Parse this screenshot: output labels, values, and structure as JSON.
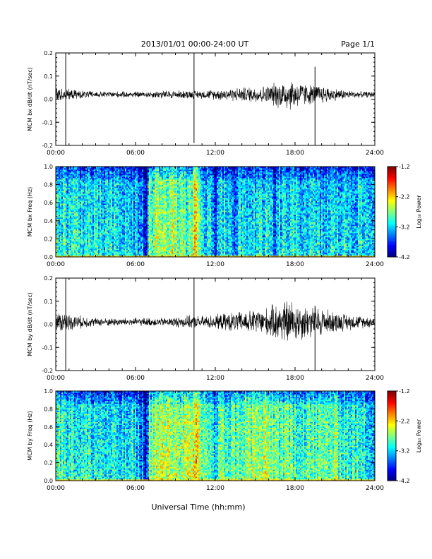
{
  "header": {
    "date_range": "2013/01/01   00:00-24:00 UT",
    "page": "Page 1/1"
  },
  "footer": {
    "xlabel": "Universal Time (hh:mm)"
  },
  "chart_data": [
    {
      "id": "bx-dbdt",
      "type": "line",
      "ylabel": "MCM bx dB/dt (nT/sec)",
      "xlim": [
        0,
        24
      ],
      "ylim": [
        -0.2,
        0.2
      ],
      "x_ticks": [
        "00:00",
        "06:00",
        "12:00",
        "18:00",
        "24:00"
      ],
      "x_tick_values": [
        0,
        6,
        12,
        18,
        24
      ],
      "y_ticks": [
        "-0.2",
        "-0.1",
        "0.0",
        "0.1",
        "0.2"
      ],
      "y_tick_values": [
        -0.2,
        -0.1,
        0.0,
        0.1,
        0.2
      ],
      "color": "#000000",
      "envelope": {
        "hours": [
          0,
          0.5,
          1,
          2,
          3,
          4,
          5,
          6,
          7,
          8,
          9,
          10,
          11,
          12,
          13,
          14,
          15,
          16,
          16.5,
          17,
          17.5,
          18,
          18.5,
          19,
          20,
          21,
          22,
          23,
          24
        ],
        "baseline": [
          0.02,
          0.02,
          0.02,
          0.02,
          0.02,
          0.02,
          0.02,
          0.02,
          0.02,
          0.02,
          0.02,
          0.02,
          0.02,
          0.02,
          0.02,
          0.02,
          0.02,
          0.02,
          0.02,
          0.02,
          0.02,
          0.02,
          0.02,
          0.02,
          0.02,
          0.02,
          0.02,
          0.02,
          0.02
        ],
        "amplitude": [
          0.04,
          0.03,
          0.025,
          0.02,
          0.015,
          0.015,
          0.015,
          0.015,
          0.015,
          0.02,
          0.02,
          0.02,
          0.02,
          0.025,
          0.03,
          0.035,
          0.04,
          0.045,
          0.06,
          0.07,
          0.08,
          0.07,
          0.06,
          0.05,
          0.045,
          0.03,
          0.02,
          0.015,
          0.015
        ]
      },
      "spikes": [
        {
          "hour": 0.75,
          "min": -0.2,
          "max": 0.2
        },
        {
          "hour": 10.4,
          "min": -0.19,
          "max": 0.2
        },
        {
          "hour": 19.5,
          "min": -0.2,
          "max": 0.14
        }
      ]
    },
    {
      "id": "bx-freq",
      "type": "heatmap",
      "ylabel": "MCM bx Freq (Hz)",
      "xlim": [
        0,
        24
      ],
      "ylim": [
        0,
        1
      ],
      "x_ticks": [
        "00:00",
        "06:00",
        "12:00",
        "18:00",
        "24:00"
      ],
      "x_tick_values": [
        0,
        6,
        12,
        18,
        24
      ],
      "y_ticks": [
        "0.0",
        "0.2",
        "0.4",
        "0.6",
        "0.8",
        "1.0"
      ],
      "y_tick_values": [
        0,
        0.2,
        0.4,
        0.6,
        0.8,
        1.0
      ],
      "colorbar": {
        "label": "Log₁₀ Power",
        "range": [
          -4.2,
          -1.2
        ],
        "ticks": [
          "-1.2",
          "-2.2",
          "-3.2",
          "-4.2"
        ],
        "tick_values": [
          -1.2,
          -2.2,
          -3.2,
          -4.2
        ]
      },
      "profile": {
        "hours": [
          0,
          1,
          2,
          3,
          4,
          5,
          6,
          6.8,
          7,
          8,
          9,
          10,
          10.4,
          11,
          12,
          13,
          14,
          15,
          16,
          17,
          18,
          19,
          20,
          21,
          22,
          23,
          24
        ],
        "level": [
          -2.9,
          -3.0,
          -3.0,
          -3.1,
          -3.1,
          -3.1,
          -3.2,
          -3.5,
          -2.8,
          -2.5,
          -2.6,
          -2.9,
          -2.0,
          -3.1,
          -3.1,
          -3.0,
          -3.1,
          -3.1,
          -3.1,
          -3.1,
          -3.1,
          -3.1,
          -3.2,
          -3.1,
          -3.1,
          -3.1,
          -3.2
        ]
      },
      "dark_bands": [
        6.8,
        10.3,
        12.0,
        13.5,
        16.5
      ],
      "low_freq_strip_level": -2.2
    },
    {
      "id": "by-dbdt",
      "type": "line",
      "ylabel": "MCM by dB/dt (nT/sec)",
      "xlim": [
        0,
        24
      ],
      "ylim": [
        -0.2,
        0.2
      ],
      "x_ticks": [
        "00:00",
        "06:00",
        "12:00",
        "18:00",
        "24:00"
      ],
      "x_tick_values": [
        0,
        6,
        12,
        18,
        24
      ],
      "y_ticks": [
        "-0.2",
        "-0.1",
        "0.0",
        "0.1",
        "0.2"
      ],
      "y_tick_values": [
        -0.2,
        -0.1,
        0.0,
        0.1,
        0.2
      ],
      "color": "#000000",
      "envelope": {
        "hours": [
          0,
          0.5,
          1,
          2,
          3,
          4,
          5,
          6,
          7,
          8,
          9,
          10,
          11,
          12,
          13,
          14,
          15,
          16,
          16.5,
          17,
          17.5,
          18,
          18.5,
          19,
          20,
          21,
          22,
          23,
          24
        ],
        "baseline": [
          0.01,
          0.01,
          0.01,
          0.01,
          0.01,
          0.01,
          0.01,
          0.01,
          0.01,
          0.01,
          0.01,
          0.01,
          0.01,
          0.01,
          0.01,
          0.01,
          0.01,
          0.01,
          0.01,
          0.01,
          0.01,
          0.01,
          0.01,
          0.01,
          0.01,
          0.01,
          0.01,
          0.01,
          0.01
        ],
        "amplitude": [
          0.05,
          0.05,
          0.04,
          0.03,
          0.02,
          0.02,
          0.02,
          0.02,
          0.02,
          0.02,
          0.025,
          0.03,
          0.03,
          0.035,
          0.045,
          0.05,
          0.06,
          0.07,
          0.09,
          0.1,
          0.11,
          0.1,
          0.09,
          0.08,
          0.07,
          0.05,
          0.04,
          0.03,
          0.025
        ]
      },
      "spikes": [
        {
          "hour": 0.75,
          "min": -0.2,
          "max": 0.2
        },
        {
          "hour": 10.4,
          "min": -0.2,
          "max": 0.2
        },
        {
          "hour": 19.5,
          "min": -0.2,
          "max": 0.08
        }
      ]
    },
    {
      "id": "by-freq",
      "type": "heatmap",
      "ylabel": "MCM by Freq (Hz)",
      "xlim": [
        0,
        24
      ],
      "ylim": [
        0,
        1
      ],
      "x_ticks": [
        "00:00",
        "06:00",
        "12:00",
        "18:00",
        "24:00"
      ],
      "x_tick_values": [
        0,
        6,
        12,
        18,
        24
      ],
      "y_ticks": [
        "0.0",
        "0.2",
        "0.4",
        "0.6",
        "0.8",
        "1.0"
      ],
      "y_tick_values": [
        0,
        0.2,
        0.4,
        0.6,
        0.8,
        1.0
      ],
      "colorbar": {
        "label": "Log₁₀ Power",
        "range": [
          -4.2,
          -1.2
        ],
        "ticks": [
          "-1.2",
          "-2.2",
          "-3.2",
          "-4.2"
        ],
        "tick_values": [
          -1.2,
          -2.2,
          -3.2,
          -4.2
        ]
      },
      "profile": {
        "hours": [
          0,
          1,
          2,
          3,
          4,
          5,
          6,
          6.8,
          7,
          8,
          9,
          10,
          10.4,
          11,
          12,
          13,
          14,
          15,
          16,
          17,
          18,
          19,
          20,
          21,
          22,
          23,
          24
        ],
        "level": [
          -2.8,
          -2.9,
          -3.0,
          -3.0,
          -3.1,
          -3.1,
          -3.1,
          -3.5,
          -2.6,
          -2.5,
          -2.5,
          -2.6,
          -2.0,
          -2.7,
          -2.8,
          -2.8,
          -2.7,
          -2.6,
          -2.6,
          -2.8,
          -2.8,
          -2.8,
          -2.8,
          -2.7,
          -2.9,
          -3.0,
          -3.1
        ]
      },
      "dark_bands": [
        6.8,
        10.3,
        12.0
      ],
      "low_freq_strip_level": -2.2
    }
  ]
}
